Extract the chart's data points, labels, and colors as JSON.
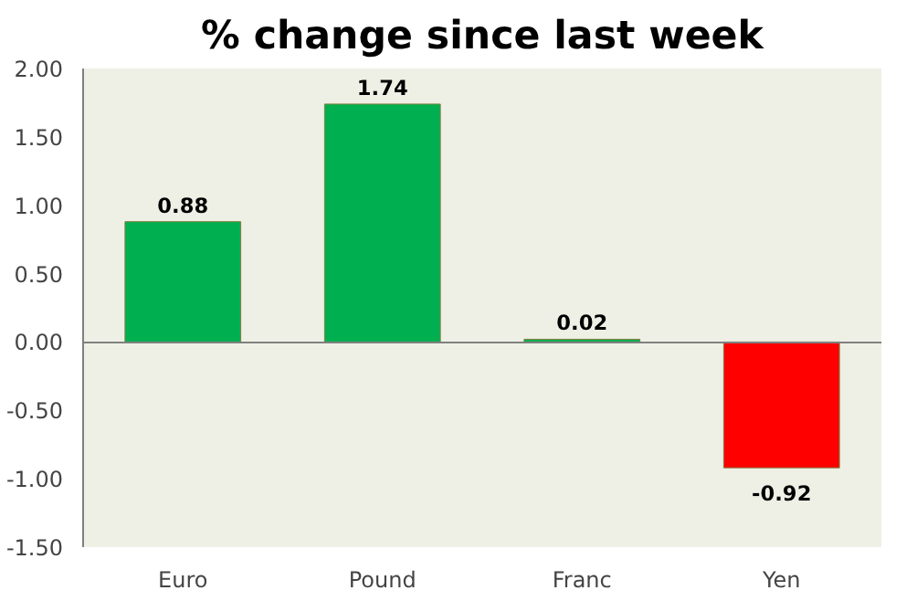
{
  "chart_data": {
    "type": "bar",
    "title": "% change since last week",
    "categories": [
      "Euro",
      "Pound",
      "Franc",
      "Yen"
    ],
    "values": [
      0.88,
      1.74,
      0.02,
      -0.92
    ],
    "colors": [
      "#00b050",
      "#00b050",
      "#00b050",
      "#ff0000"
    ],
    "ylim": [
      -1.5,
      2.0
    ],
    "yticks": [
      {
        "value": -1.5,
        "label": "-1.50"
      },
      {
        "value": -1.0,
        "label": "-1.00"
      },
      {
        "value": -0.5,
        "label": "-0.50"
      },
      {
        "value": 0,
        "label": "0.00"
      },
      {
        "value": 0.5,
        "label": "0.50"
      },
      {
        "value": 1.0,
        "label": "1.00"
      },
      {
        "value": 1.5,
        "label": "1.50"
      },
      {
        "value": 2.0,
        "label": "2.00"
      }
    ],
    "data_labels": true
  }
}
